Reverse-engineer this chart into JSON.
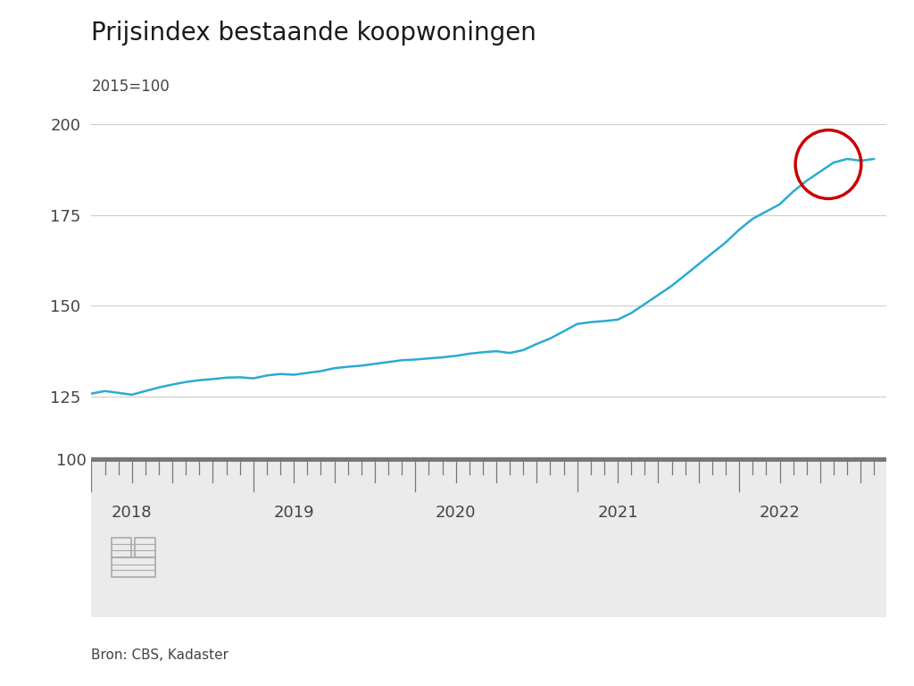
{
  "title": "Prijsindex bestaande koopwoningen",
  "subtitle": "2015=100",
  "source_text": "Bron: CBS, Kadaster",
  "line_color": "#2aabd2",
  "line_width": 1.8,
  "background_color": "#FFFFFF",
  "footer_bg_color": "#EBEBEB",
  "grid_color": "#CCCCCC",
  "tick_label_color": "#444444",
  "ylim_main": [
    118,
    205
  ],
  "yticks_main": [
    125,
    150,
    175,
    200
  ],
  "circle_color": "#CC0000",
  "data": {
    "x": [
      2017.75,
      2017.833,
      2017.917,
      2018.0,
      2018.083,
      2018.167,
      2018.25,
      2018.333,
      2018.417,
      2018.5,
      2018.583,
      2018.667,
      2018.75,
      2018.833,
      2018.917,
      2019.0,
      2019.083,
      2019.167,
      2019.25,
      2019.333,
      2019.417,
      2019.5,
      2019.583,
      2019.667,
      2019.75,
      2019.833,
      2019.917,
      2020.0,
      2020.083,
      2020.167,
      2020.25,
      2020.333,
      2020.417,
      2020.5,
      2020.583,
      2020.667,
      2020.75,
      2020.833,
      2020.917,
      2021.0,
      2021.083,
      2021.167,
      2021.25,
      2021.333,
      2021.417,
      2021.5,
      2021.583,
      2021.667,
      2021.75,
      2021.833,
      2021.917,
      2022.0,
      2022.083,
      2022.167,
      2022.25,
      2022.333,
      2022.417,
      2022.5,
      2022.583
    ],
    "y": [
      125.8,
      126.5,
      126.0,
      125.5,
      126.5,
      127.5,
      128.3,
      129.0,
      129.5,
      129.8,
      130.2,
      130.3,
      130.0,
      130.8,
      131.2,
      131.0,
      131.5,
      132.0,
      132.8,
      133.2,
      133.5,
      134.0,
      134.5,
      135.0,
      135.2,
      135.5,
      135.8,
      136.2,
      136.8,
      137.2,
      137.5,
      137.0,
      137.8,
      139.5,
      141.0,
      143.0,
      145.0,
      145.5,
      145.8,
      146.2,
      148.0,
      150.5,
      153.0,
      155.5,
      158.5,
      161.5,
      164.5,
      167.5,
      171.0,
      174.0,
      176.0,
      178.0,
      181.5,
      184.5,
      187.0,
      189.5,
      190.5,
      190.0,
      190.5
    ]
  },
  "xmin": 2017.75,
  "xmax": 2022.66,
  "xticks": [
    2018.0,
    2019.0,
    2020.0,
    2021.0,
    2022.0
  ],
  "xtick_labels": [
    "2018",
    "2019",
    "2020",
    "2021",
    "2022"
  ],
  "ruler_100_label": "100"
}
